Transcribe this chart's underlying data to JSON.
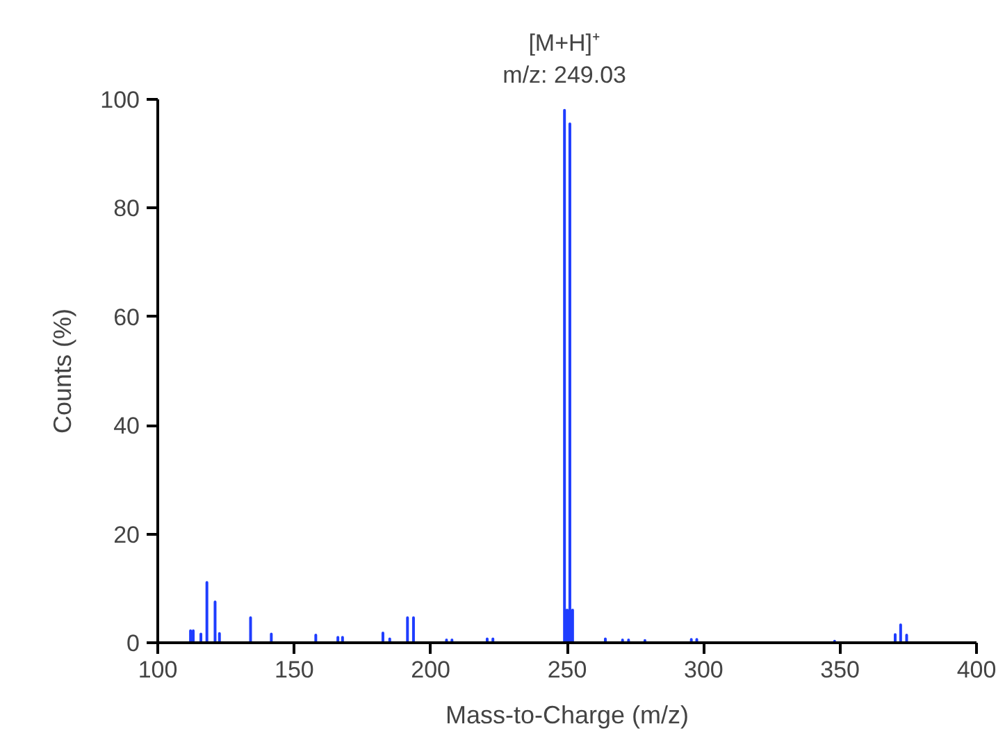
{
  "chart_data": {
    "type": "line",
    "xlabel": "Mass-to-Charge (m/z)",
    "ylabel": "Counts (%)",
    "xlim": [
      100,
      400
    ],
    "xticks": [
      100,
      150,
      200,
      250,
      300,
      350,
      400
    ],
    "ylim": [
      0,
      100
    ],
    "yticks": [
      0,
      20,
      40,
      60,
      80,
      100
    ],
    "grid": false,
    "marker": "none",
    "line_style": "solid",
    "series": [
      {
        "color": "#1f3dff",
        "x": [
          110,
          112,
          112,
          112,
          113,
          113,
          113,
          115.8,
          115.8,
          115.8,
          118,
          118,
          118,
          121,
          121,
          121,
          122.6,
          122.6,
          122.6,
          134,
          134,
          134,
          141.6,
          141.6,
          141.6,
          157.9,
          157.9,
          157.9,
          166,
          166,
          166,
          167.7,
          167.7,
          167.7,
          182.5,
          182.5,
          182.5,
          185,
          185,
          185,
          191.5,
          191.5,
          191.5,
          193.7,
          193.7,
          193.7,
          205.8,
          205.8,
          205.8,
          207.8,
          207.8,
          207.8,
          220.7,
          220.7,
          220.7,
          222.8,
          222.8,
          222.8,
          249.03,
          249.03,
          249.03,
          250,
          250,
          250,
          251,
          251,
          251,
          252,
          252,
          252,
          264,
          264,
          264,
          270.3,
          270.3,
          270.3,
          272.5,
          272.5,
          272.5,
          278.5,
          278.5,
          278.5,
          295.5,
          295.5,
          295.5,
          297.5,
          297.5,
          297.5,
          348,
          348,
          348,
          370.2,
          370.2,
          370.2,
          372.2,
          372.2,
          372.2,
          374.4,
          374.4,
          374.4,
          400
        ],
        "values": [
          0,
          0,
          2.2,
          0,
          0,
          2.2,
          0,
          0,
          1.6,
          0,
          0,
          11.1,
          0,
          0,
          7.5,
          0,
          0,
          1.7,
          0,
          0,
          4.6,
          0,
          0,
          1.6,
          0,
          0,
          1.4,
          0,
          0,
          1.0,
          0,
          0,
          1.0,
          0,
          0,
          1.8,
          0,
          0,
          0.7,
          0,
          0,
          4.6,
          0,
          0,
          4.6,
          0,
          0,
          0.5,
          0,
          0,
          0.5,
          0,
          0,
          0.7,
          0,
          0,
          0.7,
          0,
          0,
          98,
          0,
          0,
          6,
          0,
          0,
          95.5,
          0,
          0,
          6,
          0,
          0,
          0.7,
          0,
          0,
          0.5,
          0,
          0,
          0.5,
          0,
          0,
          0.4,
          0,
          0,
          0.6,
          0,
          0,
          0.6,
          0,
          0,
          0.3,
          0,
          0,
          1.5,
          0,
          0,
          3.3,
          0,
          0,
          1.4,
          0,
          0
        ]
      }
    ],
    "annotations": [
      {
        "text": "[M+H]⁺\nm/z: 249.03",
        "x": 249.03,
        "y": 98
      }
    ]
  }
}
